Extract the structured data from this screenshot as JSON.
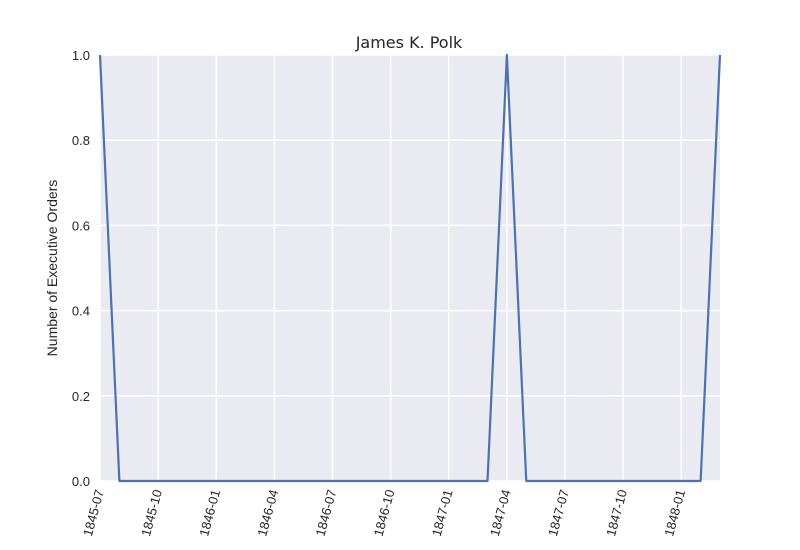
{
  "chart_data": {
    "type": "line",
    "title": "James K. Polk",
    "xlabel": "",
    "ylabel": "Number of Executive Orders",
    "x_tick_labels": [
      "1845-07",
      "1845-10",
      "1846-01",
      "1846-04",
      "1846-07",
      "1846-10",
      "1847-01",
      "1847-04",
      "1847-07",
      "1847-10",
      "1848-01"
    ],
    "y_tick_labels": [
      "0.0",
      "0.2",
      "0.4",
      "0.6",
      "0.8",
      "1.0"
    ],
    "ylim": [
      0,
      1
    ],
    "xlim": [
      "1845-07",
      "1848-03"
    ],
    "grid": true,
    "series": [
      {
        "x": [
          "1845-07",
          "1845-08",
          "1845-09",
          "1845-10",
          "1845-11",
          "1845-12",
          "1846-01",
          "1846-02",
          "1846-03",
          "1846-04",
          "1846-05",
          "1846-06",
          "1846-07",
          "1846-08",
          "1846-09",
          "1846-10",
          "1846-11",
          "1846-12",
          "1847-01",
          "1847-02",
          "1847-03",
          "1847-04",
          "1847-05",
          "1847-06",
          "1847-07",
          "1847-08",
          "1847-09",
          "1847-10",
          "1847-11",
          "1847-12",
          "1848-01",
          "1848-02",
          "1848-03"
        ],
        "values": [
          1,
          0,
          0,
          0,
          0,
          0,
          0,
          0,
          0,
          0,
          0,
          0,
          0,
          0,
          0,
          0,
          0,
          0,
          0,
          0,
          0,
          1,
          0,
          0,
          0,
          0,
          0,
          0,
          0,
          0,
          0,
          0,
          1
        ],
        "color": "#4c72b0"
      }
    ],
    "background_color": "#eaeaf2",
    "grid_color": "#ffffff"
  }
}
